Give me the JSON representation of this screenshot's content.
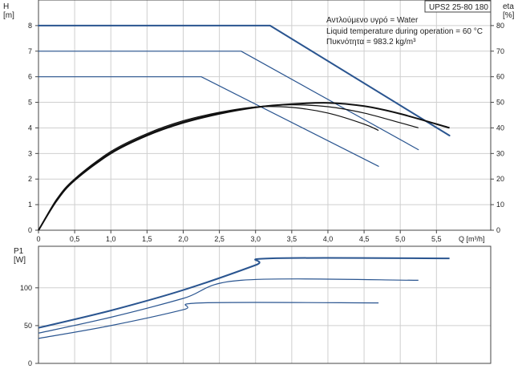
{
  "colors": {
    "frame": "#444444",
    "grid": "#cfcfcf",
    "pump_curve": "#2a5590",
    "efficiency_curve": "#111111",
    "text": "#222222",
    "background": "#ffffff"
  },
  "chart_data": [
    {
      "type": "line",
      "title_box": "UPS2 25-80 180",
      "annotations": [
        "Αντλούμενο υγρό = Water",
        "Liquid temperature during operation = 60 °C",
        "Πυκνότητα = 983.2 kg/m³"
      ],
      "x_axis": {
        "label": "Q [m³/h]",
        "lim": [
          0,
          6.25
        ],
        "ticks": [
          0,
          0.5,
          1,
          1.5,
          2,
          2.5,
          3,
          3.5,
          4,
          4.5,
          5,
          5.5
        ],
        "tick_labels": [
          "0",
          "0,5",
          "1,0",
          "1,5",
          "2,0",
          "2,5",
          "3,0",
          "3,5",
          "4,0",
          "4,5",
          "5,0",
          "5,5"
        ]
      },
      "y_axis_left": {
        "label_top": "H",
        "label_unit": "[m]",
        "lim": [
          0,
          9
        ],
        "ticks": [
          0,
          1,
          2,
          3,
          4,
          5,
          6,
          7,
          8
        ],
        "tick_labels": [
          "0",
          "1",
          "2",
          "3",
          "4",
          "5",
          "6",
          "7",
          "8"
        ]
      },
      "y_axis_right": {
        "label_top": "eta",
        "label_unit": "[%]",
        "lim": [
          0,
          90
        ],
        "ticks": [
          0,
          10,
          20,
          30,
          40,
          50,
          60,
          70,
          80
        ],
        "tick_labels": [
          "0",
          "10",
          "20",
          "30",
          "40",
          "50",
          "60",
          "70",
          "80"
        ]
      },
      "grid": true,
      "head_series": [
        {
          "x": [
            0,
            3.2,
            5.68
          ],
          "y": [
            8,
            8,
            3.7
          ]
        },
        {
          "x": [
            0,
            2.8,
            5.25
          ],
          "y": [
            7,
            7,
            3.15
          ]
        },
        {
          "x": [
            0,
            2.25,
            4.7
          ],
          "y": [
            6,
            6,
            2.5
          ]
        }
      ],
      "efficiency_series": [
        {
          "x": [
            0,
            0.25,
            0.5,
            1,
            1.5,
            2,
            2.5,
            3,
            3.5,
            4,
            4.5,
            5,
            5.68
          ],
          "y": [
            0,
            11.5,
            19.5,
            30,
            37,
            42,
            45.5,
            48,
            49.3,
            49.8,
            48.5,
            45.5,
            40
          ]
        },
        {
          "x": [
            0,
            0.25,
            0.5,
            1,
            1.5,
            2,
            2.5,
            3,
            3.5,
            4,
            4.5,
            5,
            5.25
          ],
          "y": [
            0,
            11.8,
            19.8,
            30.4,
            37.4,
            42.4,
            45.8,
            48.2,
            49,
            48.3,
            45.8,
            42,
            40
          ]
        },
        {
          "x": [
            0,
            0.25,
            0.5,
            1,
            1.5,
            2,
            2.5,
            3,
            3.5,
            4,
            4.5,
            4.7
          ],
          "y": [
            0,
            12.1,
            20.1,
            30.8,
            37.8,
            42.8,
            46.1,
            48.2,
            48,
            45.8,
            41.5,
            39
          ]
        }
      ]
    },
    {
      "type": "line",
      "x_axis": {
        "lim": [
          0,
          6.25
        ]
      },
      "y_axis_left": {
        "label_top": "P1",
        "label_unit": "[W]",
        "lim": [
          0,
          155
        ],
        "ticks": [
          0,
          50,
          100
        ],
        "tick_labels": [
          "0",
          "50",
          "100"
        ]
      },
      "grid": true,
      "power_series": [
        {
          "x": [
            0,
            1,
            2,
            3,
            3.2,
            5.68
          ],
          "y": [
            47,
            70,
            97,
            130,
            139,
            139
          ]
        },
        {
          "x": [
            0,
            1,
            2,
            2.8,
            5.25
          ],
          "y": [
            40,
            61,
            86,
            110,
            110
          ]
        },
        {
          "x": [
            0,
            1,
            2,
            2.25,
            4.7
          ],
          "y": [
            33,
            50,
            71,
            80,
            80
          ]
        }
      ]
    }
  ]
}
